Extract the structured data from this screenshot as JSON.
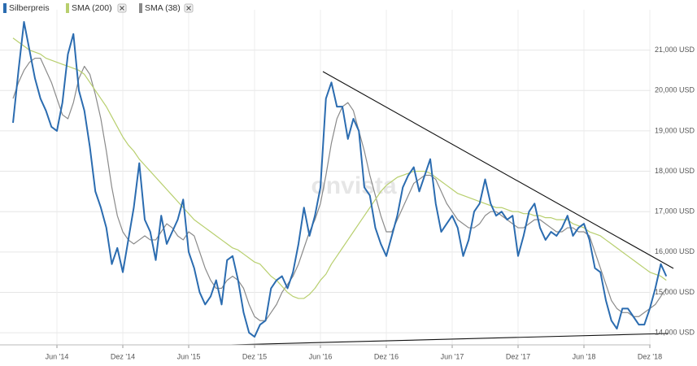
{
  "chart_data": {
    "type": "line",
    "watermark": "onvista",
    "categories": [
      null,
      null,
      null,
      null,
      null,
      null,
      null,
      null,
      "Jun '14",
      null,
      null,
      null,
      null,
      null,
      null,
      null,
      null,
      null,
      null,
      null,
      "Dez '14",
      null,
      null,
      null,
      null,
      null,
      null,
      null,
      null,
      null,
      null,
      null,
      "Jun '15",
      null,
      null,
      null,
      null,
      null,
      null,
      null,
      null,
      null,
      null,
      null,
      "Dez '15",
      null,
      null,
      null,
      null,
      null,
      null,
      null,
      null,
      null,
      null,
      null,
      "Jun '16",
      null,
      null,
      null,
      null,
      null,
      null,
      null,
      null,
      null,
      null,
      null,
      "Dez '16",
      null,
      null,
      null,
      null,
      null,
      null,
      null,
      null,
      null,
      null,
      null,
      "Jun '17",
      null,
      null,
      null,
      null,
      null,
      null,
      null,
      null,
      null,
      null,
      null,
      "Dez '17",
      null,
      null,
      null,
      null,
      null,
      null,
      null,
      null,
      null,
      null,
      null,
      "Jun '18",
      null,
      null,
      null,
      null,
      null,
      null,
      null,
      null,
      null,
      null,
      null,
      "Dez '18",
      null,
      null,
      null
    ],
    "series": [
      {
        "name": "Silberpreis",
        "color": "#2b6cb0",
        "values": [
          19200,
          20500,
          21700,
          21000,
          20300,
          19800,
          19500,
          19100,
          19000,
          19700,
          20900,
          21400,
          20000,
          19500,
          18600,
          17500,
          17100,
          16600,
          15700,
          16100,
          15500,
          16300,
          17100,
          18200,
          16800,
          16500,
          15800,
          16900,
          16200,
          16500,
          16800,
          17300,
          16000,
          15600,
          15000,
          14700,
          14900,
          15300,
          14700,
          15800,
          15900,
          15300,
          14500,
          14000,
          13900,
          14200,
          14300,
          15100,
          15300,
          15400,
          15100,
          15500,
          16200,
          17100,
          16400,
          16900,
          17600,
          19800,
          20200,
          19600,
          19600,
          18800,
          19300,
          19000,
          17600,
          17400,
          16600,
          16200,
          15900,
          16400,
          16900,
          17600,
          17900,
          18100,
          17500,
          17900,
          18300,
          17200,
          16500,
          16700,
          16900,
          16600,
          15900,
          16300,
          17000,
          17200,
          17800,
          17200,
          16900,
          17000,
          16800,
          16900,
          15900,
          16400,
          17000,
          17200,
          16600,
          16300,
          16500,
          16400,
          16600,
          16900,
          16400,
          16600,
          16700,
          16300,
          15600,
          15500,
          14800,
          14300,
          14100,
          14600,
          14600,
          14400,
          14200,
          14200,
          14600,
          15100,
          15700,
          15400
        ]
      },
      {
        "name": "SMA (200)",
        "color": "#b8cf6e",
        "values": [
          21300,
          21200,
          21100,
          21000,
          20950,
          20900,
          20800,
          20750,
          20700,
          20650,
          20600,
          20550,
          20500,
          20400,
          20200,
          20000,
          19800,
          19600,
          19350,
          19100,
          18850,
          18650,
          18500,
          18300,
          18150,
          18000,
          17850,
          17700,
          17550,
          17400,
          17250,
          17100,
          16950,
          16800,
          16700,
          16600,
          16500,
          16400,
          16300,
          16200,
          16100,
          16050,
          15950,
          15850,
          15750,
          15700,
          15550,
          15400,
          15300,
          15150,
          15000,
          14900,
          14850,
          14850,
          14950,
          15100,
          15300,
          15450,
          15700,
          15900,
          16100,
          16300,
          16500,
          16700,
          16900,
          17100,
          17300,
          17500,
          17650,
          17750,
          17850,
          17900,
          17950,
          18000,
          18000,
          18000,
          17950,
          17850,
          17750,
          17650,
          17550,
          17450,
          17400,
          17350,
          17300,
          17250,
          17200,
          17150,
          17100,
          17100,
          17050,
          17000,
          17000,
          16950,
          16950,
          16900,
          16900,
          16850,
          16850,
          16800,
          16800,
          16800,
          16700,
          16650,
          16600,
          16500,
          16450,
          16400,
          16300,
          16200,
          16100,
          16000,
          15900,
          15800,
          15700,
          15600,
          15500,
          15450,
          15400,
          15300
        ]
      },
      {
        "name": "SMA (38)",
        "color": "#8a8a8a",
        "values": [
          19800,
          20200,
          20500,
          20700,
          20800,
          20800,
          20500,
          20200,
          19800,
          19400,
          19300,
          19700,
          20300,
          20600,
          20400,
          19900,
          19300,
          18500,
          17600,
          16900,
          16500,
          16300,
          16200,
          16300,
          16400,
          16300,
          16300,
          16500,
          16700,
          16600,
          16400,
          16300,
          16500,
          16400,
          16000,
          15600,
          15300,
          15100,
          15100,
          15300,
          15400,
          15300,
          15100,
          14700,
          14400,
          14300,
          14300,
          14500,
          14700,
          15000,
          15200,
          15400,
          15700,
          16100,
          16500,
          16800,
          17200,
          17900,
          18700,
          19300,
          19600,
          19700,
          19500,
          19000,
          18500,
          17900,
          17400,
          16900,
          16500,
          16500,
          16800,
          17100,
          17400,
          17700,
          17800,
          17900,
          17900,
          17800,
          17500,
          17200,
          17000,
          16800,
          16700,
          16600,
          16600,
          16700,
          16900,
          17000,
          17000,
          16900,
          16800,
          16700,
          16600,
          16600,
          16700,
          16800,
          16800,
          16700,
          16600,
          16500,
          16500,
          16600,
          16600,
          16500,
          16500,
          16400,
          16000,
          15600,
          15200,
          14800,
          14600,
          14500,
          14500,
          14400,
          14400,
          14500,
          14600,
          14700,
          14900,
          15100
        ]
      }
    ],
    "ylim": [
      13700,
      22000
    ],
    "yticks": [
      {
        "value": 14000,
        "label": "14,000 USD"
      },
      {
        "value": 15000,
        "label": "15,000 USD"
      },
      {
        "value": 16000,
        "label": "16,000 USD"
      },
      {
        "value": 17000,
        "label": "17,000 USD"
      },
      {
        "value": 18000,
        "label": "18,000 USD"
      },
      {
        "value": 19000,
        "label": "19,000 USD"
      },
      {
        "value": 20000,
        "label": "20,000 USD"
      },
      {
        "value": 21000,
        "label": "21,000 USD"
      }
    ],
    "grid": true
  }
}
